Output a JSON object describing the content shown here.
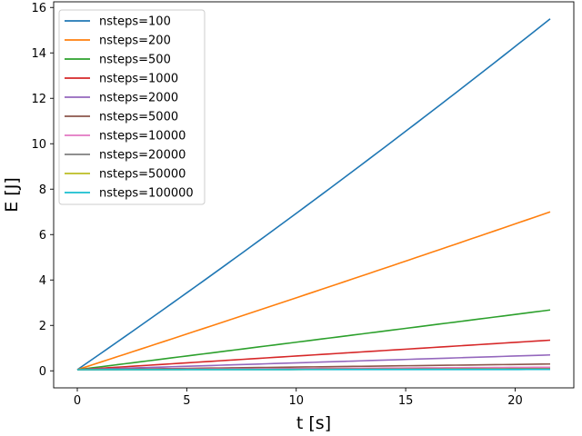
{
  "chart_data": {
    "type": "line",
    "title": "",
    "xlabel": "t [s]",
    "ylabel": "E [J]",
    "xlim": [
      -1.08,
      22.68
    ],
    "ylim": [
      -0.75,
      16.25
    ],
    "xticks": [
      0,
      5,
      10,
      15,
      20
    ],
    "yticks": [
      0,
      2,
      4,
      6,
      8,
      10,
      12,
      14,
      16
    ],
    "grid": false,
    "legend_position": "top-left",
    "x": [
      0,
      21.6
    ],
    "series": [
      {
        "name": "nsteps=100",
        "color": "#1f77b4",
        "values": [
          0.05,
          15.5
        ],
        "curvature": 0.07
      },
      {
        "name": "nsteps=200",
        "color": "#ff7f0e",
        "values": [
          0.05,
          7.0
        ],
        "curvature": 0.03
      },
      {
        "name": "nsteps=500",
        "color": "#2ca02c",
        "values": [
          0.05,
          2.68
        ],
        "curvature": 0.012
      },
      {
        "name": "nsteps=1000",
        "color": "#d62728",
        "values": [
          0.05,
          1.35
        ],
        "curvature": 0.0
      },
      {
        "name": "nsteps=2000",
        "color": "#9467bd",
        "values": [
          0.05,
          0.7
        ],
        "curvature": 0.0
      },
      {
        "name": "nsteps=5000",
        "color": "#8c564b",
        "values": [
          0.05,
          0.3
        ],
        "curvature": 0.0
      },
      {
        "name": "nsteps=10000",
        "color": "#e377c2",
        "values": [
          0.05,
          0.16
        ],
        "curvature": 0.0
      },
      {
        "name": "nsteps=20000",
        "color": "#7f7f7f",
        "values": [
          0.05,
          0.1
        ],
        "curvature": 0.0
      },
      {
        "name": "nsteps=50000",
        "color": "#bcbd22",
        "values": [
          0.05,
          0.07
        ],
        "curvature": 0.0
      },
      {
        "name": "nsteps=100000",
        "color": "#17becf",
        "values": [
          0.05,
          0.06
        ],
        "curvature": 0.0
      }
    ]
  }
}
